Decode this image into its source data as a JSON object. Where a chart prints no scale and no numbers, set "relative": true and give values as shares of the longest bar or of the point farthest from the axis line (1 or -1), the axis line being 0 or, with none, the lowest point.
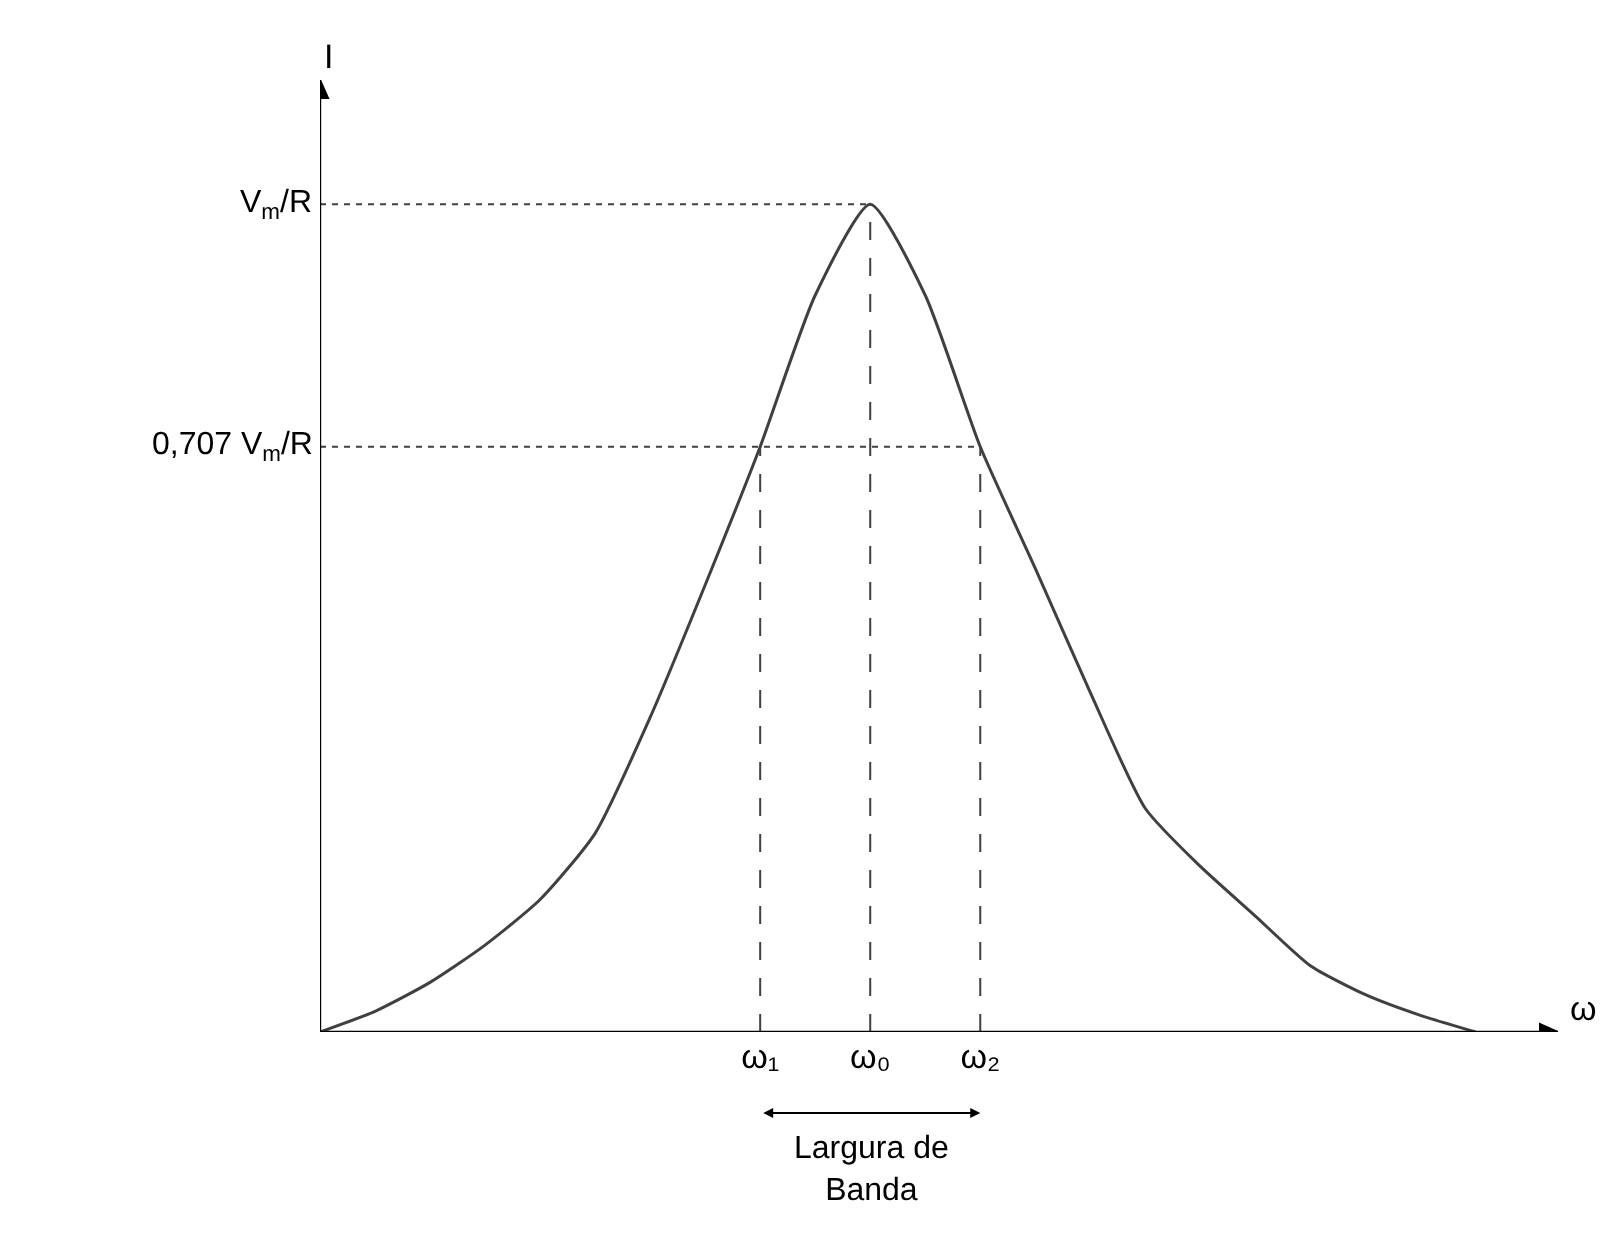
{
  "chart_data": {
    "type": "line",
    "xlabel": "ω",
    "ylabel": "I",
    "relative": true,
    "categories": [
      null,
      null,
      null,
      null,
      null,
      null,
      null,
      null,
      "ω₁",
      null,
      "ω₀",
      null,
      "ω₂",
      null,
      null,
      null,
      null,
      null,
      null,
      null,
      null,
      null
    ],
    "series": [
      {
        "color": "#404040",
        "values": [
          0,
          0.025,
          0.06,
          0.105,
          0.16,
          0.24,
          0.38,
          0.54,
          0.707,
          0.89,
          1,
          0.89,
          0.707,
          0.56,
          0.41,
          0.27,
          0.2,
          0.14,
          0.08,
          0.045,
          0.02,
          0
        ]
      }
    ],
    "ref_lines": [
      {
        "axis": "y",
        "value": 1,
        "label": "V$_{m}$/R",
        "line_style": "dotted",
        "color": "#404040"
      },
      {
        "axis": "y",
        "value": 0.707,
        "label": "0,707 V$_{m}$/R",
        "line_style": "dotted",
        "color": "#404040"
      },
      {
        "axis": "x",
        "value": "ω₁",
        "line_style": "dashed",
        "color": "#404040"
      },
      {
        "axis": "x",
        "value": "ω₀",
        "line_style": "dashed",
        "color": "#404040"
      },
      {
        "axis": "x",
        "value": "ω₂",
        "line_style": "dashed",
        "color": "#404040"
      }
    ],
    "annotations": [
      "Largura de Banda"
    ],
    "legend": false,
    "marker": "none",
    "line_style": "solid"
  }
}
